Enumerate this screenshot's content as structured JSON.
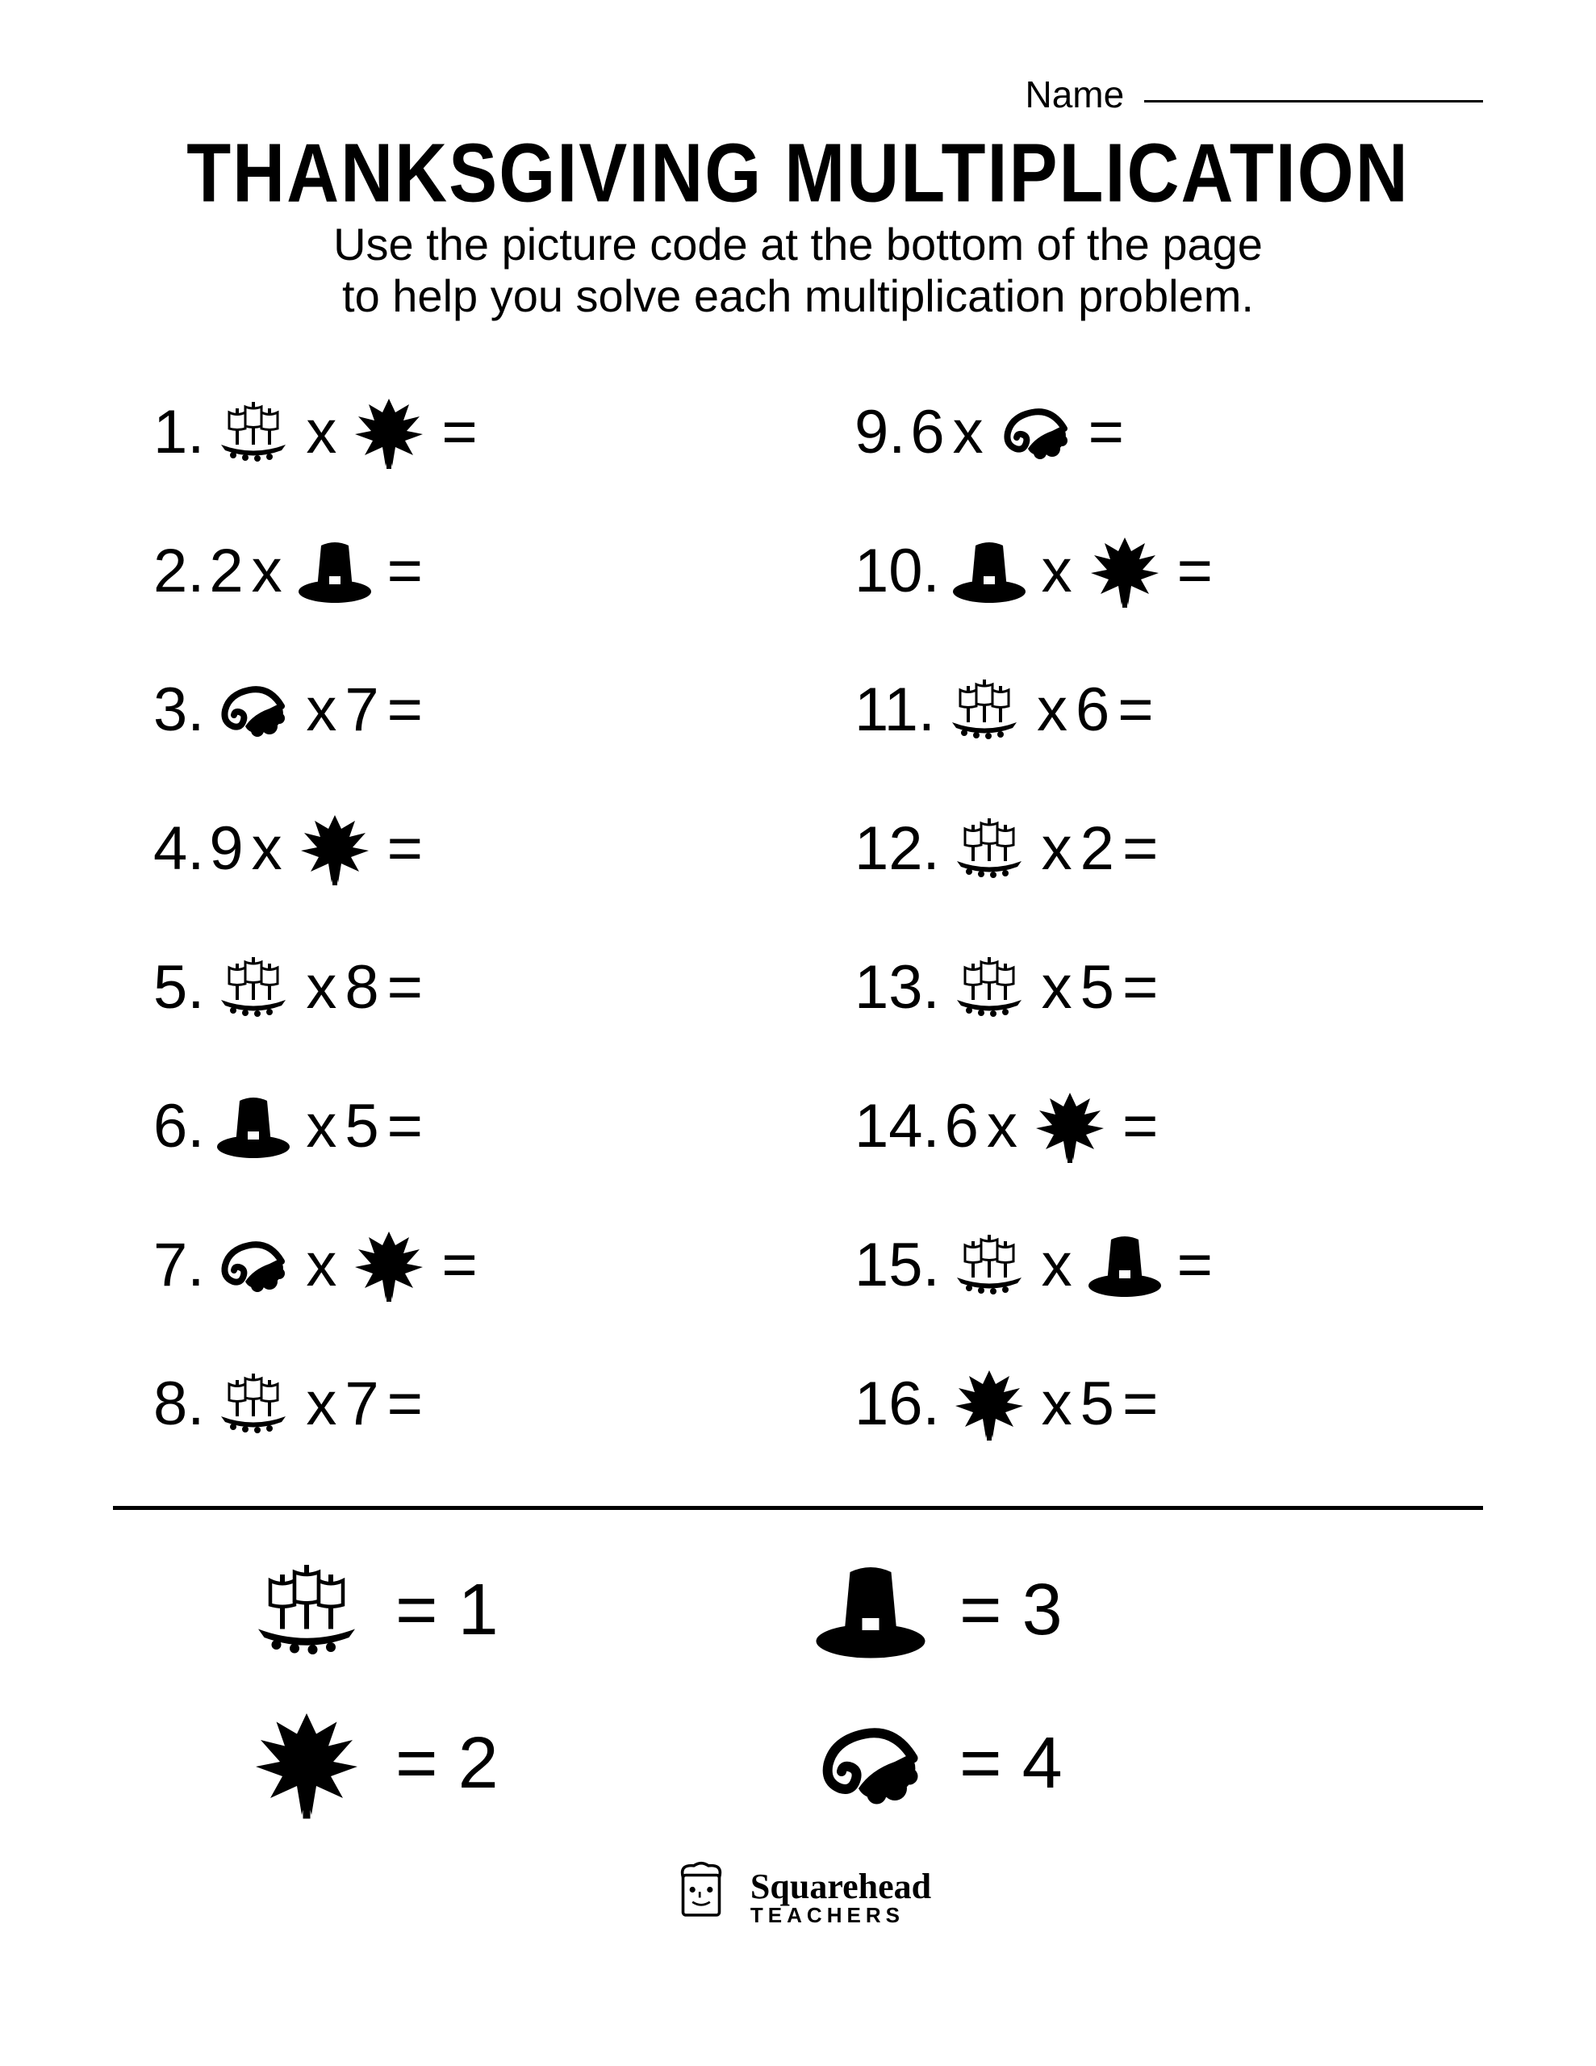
{
  "header": {
    "name_label": "Name",
    "title": "Thanksgiving Multiplication",
    "subtitle_line1": "Use the picture code at the bottom of the page",
    "subtitle_line2": "to help you solve each multiplication problem."
  },
  "icons": {
    "ship": "ship",
    "leaf": "leaf",
    "hat": "hat",
    "cornucopia": "cornucopia"
  },
  "problems_left": [
    {
      "n": "1.",
      "a_icon": "ship",
      "a_text": null,
      "b_icon": "leaf",
      "b_text": null
    },
    {
      "n": "2.",
      "a_icon": null,
      "a_text": "2",
      "b_icon": "hat",
      "b_text": null
    },
    {
      "n": "3.",
      "a_icon": "cornucopia",
      "a_text": null,
      "b_icon": null,
      "b_text": "7"
    },
    {
      "n": "4.",
      "a_icon": null,
      "a_text": "9",
      "b_icon": "leaf",
      "b_text": null
    },
    {
      "n": "5.",
      "a_icon": "ship",
      "a_text": null,
      "b_icon": null,
      "b_text": "8"
    },
    {
      "n": "6.",
      "a_icon": "hat",
      "a_text": null,
      "b_icon": null,
      "b_text": "5"
    },
    {
      "n": "7.",
      "a_icon": "cornucopia",
      "a_text": null,
      "b_icon": "leaf",
      "b_text": null
    },
    {
      "n": "8.",
      "a_icon": "ship",
      "a_text": null,
      "b_icon": null,
      "b_text": "7"
    }
  ],
  "problems_right": [
    {
      "n": "9.",
      "a_icon": null,
      "a_text": "6",
      "b_icon": "cornucopia",
      "b_text": null
    },
    {
      "n": "10.",
      "a_icon": "hat",
      "a_text": null,
      "b_icon": "leaf",
      "b_text": null
    },
    {
      "n": "11.",
      "a_icon": "ship",
      "a_text": null,
      "b_icon": null,
      "b_text": "6"
    },
    {
      "n": "12.",
      "a_icon": "ship",
      "a_text": null,
      "b_icon": null,
      "b_text": "2"
    },
    {
      "n": "13.",
      "a_icon": "ship",
      "a_text": null,
      "b_icon": null,
      "b_text": "5"
    },
    {
      "n": "14.",
      "a_icon": null,
      "a_text": "6",
      "b_icon": "leaf",
      "b_text": null
    },
    {
      "n": "15.",
      "a_icon": "ship",
      "a_text": null,
      "b_icon": "hat",
      "b_text": null
    },
    {
      "n": "16.",
      "a_icon": "leaf",
      "a_text": null,
      "b_icon": null,
      "b_text": "5"
    }
  ],
  "operator": "x",
  "equals": "=",
  "legend": [
    {
      "icon": "ship",
      "value": "1"
    },
    {
      "icon": "hat",
      "value": "3"
    },
    {
      "icon": "leaf",
      "value": "2"
    },
    {
      "icon": "cornucopia",
      "value": "4"
    }
  ],
  "footer": {
    "brand": "Squarehead",
    "sub": "TEACHERS"
  },
  "style": {
    "page_bg": "#ffffff",
    "text_color": "#000000",
    "title_fontsize": 90,
    "subtitle_fontsize": 56,
    "problem_fontsize": 76,
    "legend_fontsize": 90,
    "divider_weight": 5
  }
}
